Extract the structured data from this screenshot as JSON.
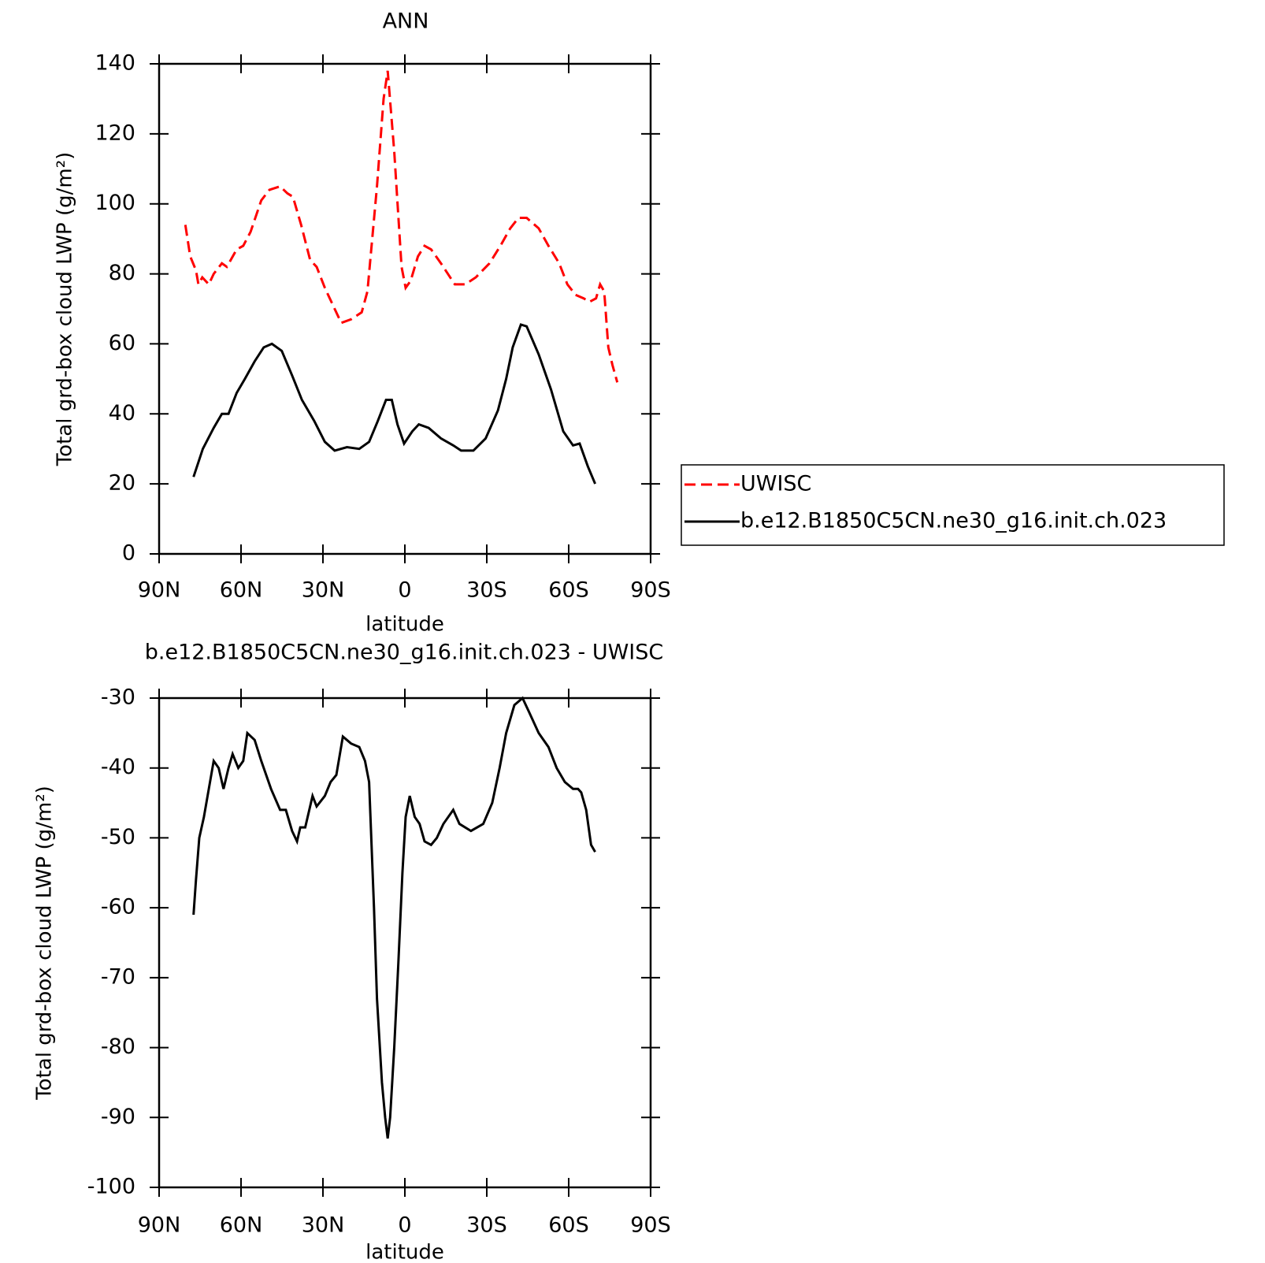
{
  "chart_data": [
    {
      "type": "line",
      "title": "ANN",
      "xlabel": "latitude",
      "ylabel": "Total grd-box cloud LWP (g/m²)",
      "xlim": [
        90,
        -90
      ],
      "ylim": [
        0,
        140
      ],
      "xticks": [
        {
          "value": 90,
          "label": "90N"
        },
        {
          "value": 60,
          "label": "60N"
        },
        {
          "value": 30,
          "label": "30N"
        },
        0,
        {
          "value": -30,
          "label": "30S"
        },
        {
          "value": -60,
          "label": "60S"
        },
        {
          "value": -90,
          "label": "90S"
        }
      ],
      "yticks": [
        0,
        20,
        40,
        60,
        80,
        100,
        120,
        140
      ],
      "legend": "right",
      "series": [
        {
          "name": "UWISC",
          "color": "#ff0000",
          "style": "dashed",
          "x": [
            80.4,
            78.6,
            76.5,
            75.6,
            74.2,
            71.8,
            70,
            67,
            65.2,
            61.6,
            59.2,
            56.5,
            52.6,
            49.6,
            45.7,
            43,
            41,
            38,
            34.7,
            32.3,
            29.3,
            26.3,
            23.3,
            19.7,
            15.8,
            13.7,
            10.2,
            7.8,
            6.3,
            3.9,
            1.2,
            -0.3,
            -2.1,
            -4.8,
            -7.2,
            -9.6,
            -13.2,
            -18.3,
            -22.1,
            -26,
            -31,
            -35,
            -38.6,
            -41.6,
            -44.6,
            -49,
            -52.6,
            -56.5,
            -59.5,
            -62.5,
            -65.5,
            -67.6,
            -70,
            -71.5,
            -73,
            -74.5,
            -76,
            -77.8
          ],
          "values": [
            94,
            85,
            81,
            77,
            79,
            77,
            80,
            83,
            82,
            87,
            88,
            92,
            101,
            104,
            105,
            103,
            102,
            94,
            84,
            82,
            76,
            71,
            66,
            67,
            69,
            75,
            105,
            130,
            138,
            115,
            82,
            76,
            78,
            85,
            88,
            87,
            83,
            77,
            77,
            79,
            83,
            88,
            93,
            96,
            96,
            93,
            88,
            83,
            77,
            74,
            73,
            72,
            73,
            77,
            75,
            59,
            54,
            49
          ]
        },
        {
          "name": "b.e12.B1850C5CN.ne30_g16.init.ch.023",
          "color": "#000000",
          "style": "solid",
          "x": [
            77.4,
            74,
            70,
            67,
            64.6,
            61.6,
            58.6,
            55,
            51.7,
            48.7,
            45.1,
            41.3,
            37.7,
            33.2,
            29.3,
            25.7,
            21.2,
            16.7,
            13.1,
            9.9,
            6.9,
            4.8,
            2.7,
            0.3,
            -2.7,
            -5.1,
            -8.7,
            -13.2,
            -17.7,
            -20.6,
            -25.1,
            -29.6,
            -34.1,
            -37.1,
            -39.5,
            -42.5,
            -44.6,
            -49,
            -53.5,
            -58,
            -61.6,
            -64,
            -67,
            -69.7
          ],
          "values": [
            22,
            30,
            36,
            40,
            40,
            46,
            50,
            55,
            59,
            60,
            58,
            51,
            44,
            38,
            32,
            29.5,
            30.5,
            30,
            32,
            38,
            44,
            44,
            37,
            31.5,
            35,
            37,
            36,
            33,
            31,
            29.5,
            29.5,
            33,
            41,
            50,
            59,
            65.5,
            65,
            57,
            47,
            35,
            31,
            31.5,
            25,
            20
          ]
        }
      ]
    },
    {
      "type": "line",
      "title": "b.e12.B1850C5CN.ne30_g16.init.ch.023 - UWISC",
      "xlabel": "latitude",
      "ylabel": "Total grd-box cloud LWP (g/m²)",
      "xlim": [
        90,
        -90
      ],
      "ylim": [
        -100,
        -30
      ],
      "xticks": [
        {
          "value": 90,
          "label": "90N"
        },
        {
          "value": 60,
          "label": "60N"
        },
        {
          "value": 30,
          "label": "30N"
        },
        0,
        {
          "value": -30,
          "label": "30S"
        },
        {
          "value": -60,
          "label": "60S"
        },
        {
          "value": -90,
          "label": "90S"
        }
      ],
      "yticks": [
        -100,
        -90,
        -80,
        -70,
        -60,
        -50,
        -40,
        -30
      ],
      "series": [
        {
          "color": "#000000",
          "style": "solid",
          "x": [
            77.4,
            76.5,
            75.3,
            73.6,
            71.8,
            70,
            68.2,
            66.4,
            64.6,
            63.1,
            61,
            59.2,
            57.7,
            55,
            52.6,
            49,
            45.7,
            43.6,
            41.3,
            39.5,
            38.3,
            36.5,
            33.8,
            32.3,
            29.3,
            27.2,
            25.1,
            22.7,
            19.7,
            16.7,
            14.6,
            13.1,
            11.3,
            10.2,
            8.4,
            7.2,
            6.3,
            5.4,
            3.9,
            2.4,
            0.9,
            -0.3,
            -1.8,
            -3.6,
            -5.4,
            -7.2,
            -9.6,
            -11.7,
            -14.1,
            -17.7,
            -20,
            -24.2,
            -28.7,
            -32,
            -34.7,
            -37.1,
            -40.1,
            -43.1,
            -45.5,
            -49,
            -52.6,
            -55.6,
            -58.6,
            -61.6,
            -63.4,
            -64.6,
            -66.4,
            -68.2,
            -69.7
          ],
          "values": [
            -61,
            -56,
            -50,
            -47,
            -43,
            -39,
            -40,
            -43,
            -40,
            -38,
            -40,
            -39,
            -35,
            -36,
            -39,
            -43,
            -46,
            -46,
            -49,
            -50.5,
            -48.5,
            -48.5,
            -44,
            -45.5,
            -44,
            -42,
            -41,
            -35.5,
            -36.5,
            -37,
            -39,
            -42,
            -60,
            -73,
            -85,
            -90,
            -93,
            -90,
            -80,
            -68,
            -55,
            -47,
            -44,
            -47,
            -48,
            -50.5,
            -51,
            -50,
            -48,
            -46,
            -48,
            -49,
            -48,
            -45,
            -40,
            -35,
            -31,
            -30,
            -32,
            -35,
            -37,
            -40,
            -42,
            -43,
            -43,
            -43.5,
            -46,
            -51,
            -52
          ]
        }
      ]
    }
  ]
}
